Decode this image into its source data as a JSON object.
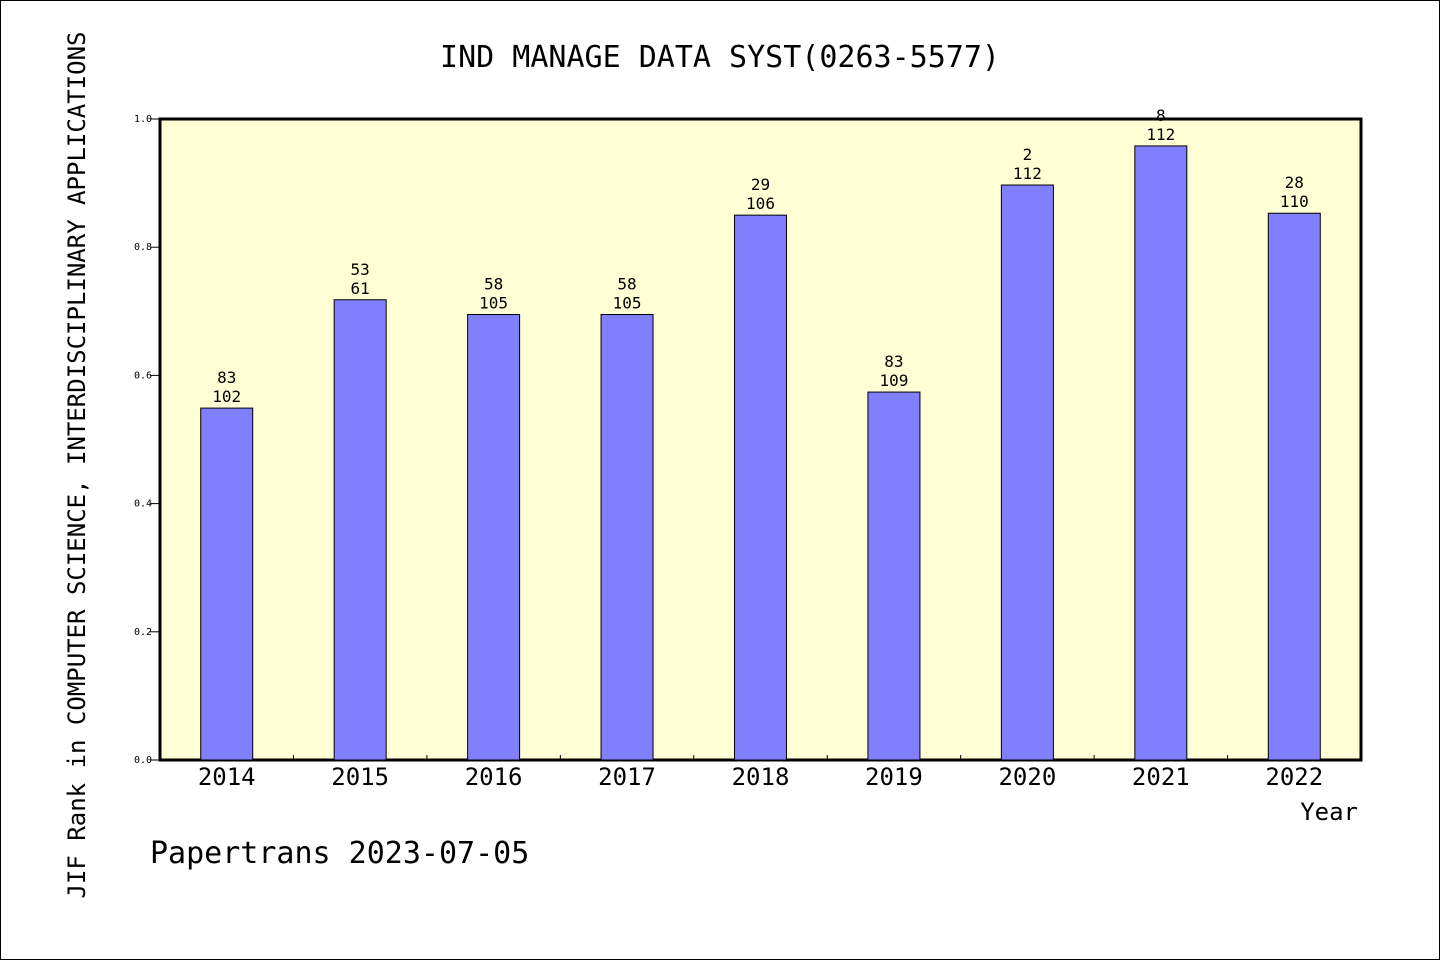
{
  "chart_data": {
    "type": "bar",
    "title": "IND MANAGE DATA SYST(0263-5577)",
    "ylabel": "JIF Rank in COMPUTER SCIENCE, INTERDISCIPLINARY APPLICATIONS",
    "xlabel": "Year",
    "footer": "Papertrans 2023-07-05",
    "ylim": [
      0,
      1.0
    ],
    "yticks": [
      "0.0",
      "0.2",
      "0.4",
      "0.6",
      "0.8",
      "1.0"
    ],
    "categories": [
      "2014",
      "2015",
      "2016",
      "2017",
      "2018",
      "2019",
      "2020",
      "2021",
      "2022"
    ],
    "values": [
      0.549,
      0.718,
      0.695,
      0.695,
      0.85,
      0.574,
      0.897,
      0.958,
      0.853
    ],
    "rank_labels": [
      "83",
      "53",
      "58",
      "58",
      "29",
      "83",
      "2",
      "8",
      "28"
    ],
    "total_labels": [
      "102",
      "61",
      "105",
      "105",
      "106",
      "109",
      "112",
      "112",
      "110"
    ],
    "grid": false,
    "colors": {
      "plot_background": "#ffffd5",
      "bar_fill": "#8080ff",
      "bar_stroke": "#000000"
    }
  }
}
